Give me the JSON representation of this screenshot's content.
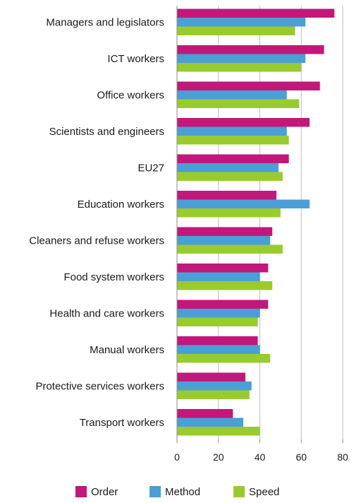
{
  "chart_data": {
    "type": "bar",
    "orientation": "horizontal",
    "categories": [
      "Managers and legislators",
      "ICT workers",
      "Office workers",
      "Scientists and engineers",
      "EU27",
      "Education workers",
      "Cleaners and refuse workers",
      "Food system workers",
      "Health and care workers",
      "Manual workers",
      "Protective services workers",
      "Transport workers"
    ],
    "series": [
      {
        "name": "Order",
        "color": "#c2187a",
        "values": [
          76,
          71,
          69,
          64,
          54,
          48,
          46,
          44,
          44,
          39,
          33,
          27
        ]
      },
      {
        "name": "Method",
        "color": "#4a9fd6",
        "values": [
          62,
          62,
          53,
          53,
          49,
          64,
          45,
          40,
          40,
          40,
          36,
          32
        ]
      },
      {
        "name": "Speed",
        "color": "#9acb2e",
        "values": [
          57,
          60,
          59,
          54,
          51,
          50,
          51,
          46,
          39,
          45,
          35,
          40
        ]
      }
    ],
    "xlim": [
      0,
      80
    ],
    "xticks": [
      "0",
      "20",
      "40",
      "60",
      "80"
    ],
    "grid": "vertical",
    "legend_position": "bottom",
    "title": "",
    "xlabel": "",
    "ylabel": ""
  }
}
